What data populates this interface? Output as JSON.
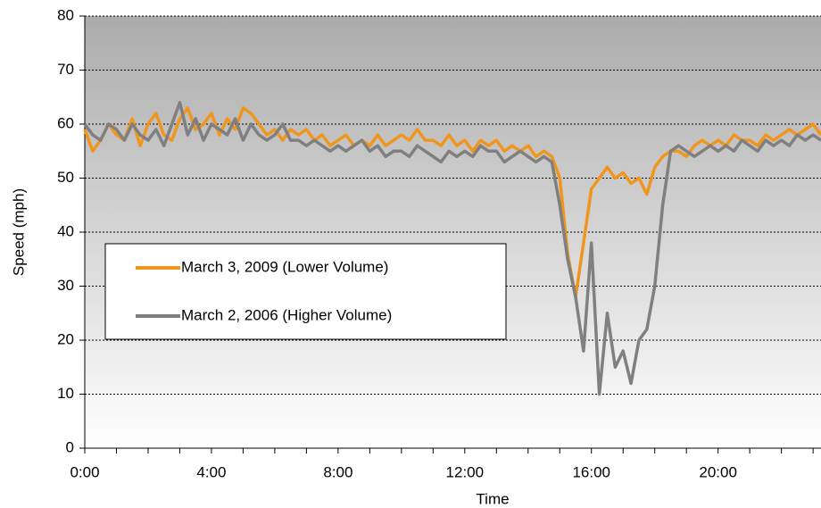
{
  "chart_data": {
    "type": "line",
    "xlabel": "Time",
    "ylabel": "Speed (mph)",
    "x": [
      0,
      0.25,
      0.5,
      0.75,
      1,
      1.25,
      1.5,
      1.75,
      2,
      2.25,
      2.5,
      2.75,
      3,
      3.25,
      3.5,
      3.75,
      4,
      4.25,
      4.5,
      4.75,
      5,
      5.25,
      5.5,
      5.75,
      6,
      6.25,
      6.5,
      6.75,
      7,
      7.25,
      7.5,
      7.75,
      8,
      8.25,
      8.5,
      8.75,
      9,
      9.25,
      9.5,
      9.75,
      10,
      10.25,
      10.5,
      10.75,
      11,
      11.25,
      11.5,
      11.75,
      12,
      12.25,
      12.5,
      12.75,
      13,
      13.25,
      13.5,
      13.75,
      14,
      14.25,
      14.5,
      14.75,
      15,
      15.25,
      15.5,
      15.75,
      16,
      16.25,
      16.5,
      16.75,
      17,
      17.25,
      17.5,
      17.75,
      18,
      18.25,
      18.5,
      18.75,
      19,
      19.25,
      19.5,
      19.75,
      20,
      20.25,
      20.5,
      20.75,
      21,
      21.25,
      21.5,
      21.75,
      22,
      22.25,
      22.5,
      22.75,
      23,
      23.25
    ],
    "series": [
      {
        "name": "March 3, 2009 (Lower Volume)",
        "color": "#f0961e",
        "values": [
          59,
          55,
          57,
          60,
          58,
          57,
          61,
          56,
          60,
          62,
          58,
          57,
          61,
          63,
          59,
          60,
          62,
          58,
          61,
          59,
          63,
          62,
          60,
          58,
          59,
          57,
          59,
          58,
          59,
          57,
          58,
          56,
          57,
          58,
          56,
          57,
          56,
          58,
          56,
          57,
          58,
          57,
          59,
          57,
          57,
          56,
          58,
          56,
          57,
          55,
          57,
          56,
          57,
          55,
          56,
          55,
          56,
          54,
          55,
          54,
          50,
          36,
          28,
          38,
          48,
          50,
          52,
          50,
          51,
          49,
          50,
          47,
          52,
          54,
          55,
          55,
          54,
          56,
          57,
          56,
          57,
          56,
          58,
          57,
          57,
          56,
          58,
          57,
          58,
          59,
          58,
          59,
          60,
          58
        ]
      },
      {
        "name": "March 2, 2006 (Higher Volume)",
        "color": "#808080",
        "values": [
          60,
          58,
          57,
          60,
          59,
          57,
          60,
          58,
          57,
          59,
          56,
          60,
          64,
          58,
          61,
          57,
          60,
          59,
          58,
          61,
          57,
          60,
          58,
          57,
          58,
          60,
          57,
          57,
          56,
          57,
          56,
          55,
          56,
          55,
          56,
          57,
          55,
          56,
          54,
          55,
          55,
          54,
          56,
          55,
          54,
          53,
          55,
          54,
          55,
          54,
          56,
          55,
          55,
          53,
          54,
          55,
          54,
          53,
          54,
          53,
          45,
          35,
          28,
          18,
          38,
          10,
          25,
          15,
          18,
          12,
          20,
          22,
          30,
          45,
          55,
          56,
          55,
          54,
          55,
          56,
          55,
          56,
          55,
          57,
          56,
          55,
          57,
          56,
          57,
          56,
          58,
          57,
          58,
          57
        ]
      }
    ],
    "xlim": [
      0,
      23.25
    ],
    "xticks": [
      {
        "value": 0,
        "label": "0:00"
      },
      {
        "value": 4,
        "label": "4:00"
      },
      {
        "value": 8,
        "label": "8:00"
      },
      {
        "value": 12,
        "label": "12:00"
      },
      {
        "value": 16,
        "label": "16:00"
      },
      {
        "value": 20,
        "label": "20:00"
      }
    ],
    "xminorticks": [
      1,
      2,
      3,
      5,
      6,
      7,
      9,
      10,
      11,
      13,
      14,
      15,
      17,
      18,
      19,
      21,
      22,
      23
    ],
    "ylim": [
      0,
      80
    ],
    "yticks": [
      0,
      10,
      20,
      30,
      40,
      50,
      60,
      70,
      80
    ],
    "grid": true
  }
}
